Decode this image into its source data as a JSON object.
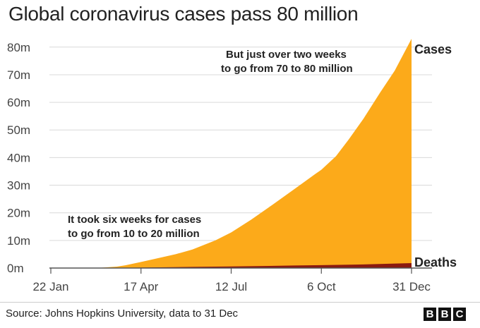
{
  "title": "Global coronavirus cases pass 80 million",
  "footer": {
    "source": "Source: Johns Hopkins University, data to 31 Dec",
    "logo_letters": [
      "B",
      "B",
      "C"
    ]
  },
  "colors": {
    "cases": "#fcaa1a",
    "deaths": "#8a1a10",
    "axis": "#555555",
    "grid": "#d9d9d9"
  },
  "chart_data": {
    "type": "area",
    "title": "Global coronavirus cases pass 80 million",
    "x_start": "2020-01-22",
    "x_end": "2020-12-31",
    "xticks": [
      {
        "date": "2020-01-22",
        "label": "22 Jan"
      },
      {
        "date": "2020-04-17",
        "label": "17 Apr"
      },
      {
        "date": "2020-07-12",
        "label": "12 Jul"
      },
      {
        "date": "2020-10-06",
        "label": "6 Oct"
      },
      {
        "date": "2020-12-31",
        "label": "31 Dec"
      }
    ],
    "yticks": [
      {
        "value": 0,
        "label": "0m"
      },
      {
        "value": 10,
        "label": "10m"
      },
      {
        "value": 20,
        "label": "20m"
      },
      {
        "value": 30,
        "label": "30m"
      },
      {
        "value": 40,
        "label": "40m"
      },
      {
        "value": 50,
        "label": "50m"
      },
      {
        "value": 60,
        "label": "60m"
      },
      {
        "value": 70,
        "label": "70m"
      },
      {
        "value": 80,
        "label": "80m"
      }
    ],
    "ylim": [
      0,
      82.5
    ],
    "y_unit": "millions",
    "grid": true,
    "series": [
      {
        "name": "Cases",
        "x": [
          "2020-01-22",
          "2020-02-15",
          "2020-03-10",
          "2020-03-25",
          "2020-04-02",
          "2020-04-17",
          "2020-05-01",
          "2020-05-20",
          "2020-06-05",
          "2020-06-27",
          "2020-07-12",
          "2020-07-31",
          "2020-08-20",
          "2020-09-10",
          "2020-09-30",
          "2020-10-06",
          "2020-10-20",
          "2020-11-01",
          "2020-11-15",
          "2020-12-01",
          "2020-12-15",
          "2020-12-31"
        ],
        "values": [
          0.0006,
          0.07,
          0.12,
          0.5,
          1.0,
          2.2,
          3.4,
          5.0,
          6.7,
          10.0,
          12.9,
          17.5,
          22.8,
          28.5,
          34.0,
          35.6,
          40.5,
          46.5,
          54.0,
          63.5,
          71.5,
          83.0
        ]
      },
      {
        "name": "Deaths",
        "x": [
          "2020-01-22",
          "2020-03-10",
          "2020-04-17",
          "2020-06-05",
          "2020-07-12",
          "2020-09-10",
          "2020-10-06",
          "2020-11-15",
          "2020-12-31"
        ],
        "values": [
          0,
          0.004,
          0.15,
          0.4,
          0.57,
          0.91,
          1.05,
          1.3,
          1.8
        ]
      }
    ],
    "annotations": [
      {
        "lines": [
          "It took six weeks for cases",
          "to go from 10 to 20 million"
        ]
      },
      {
        "lines": [
          "But just over two weeks",
          "to go from 70 to 80 million"
        ]
      }
    ]
  }
}
